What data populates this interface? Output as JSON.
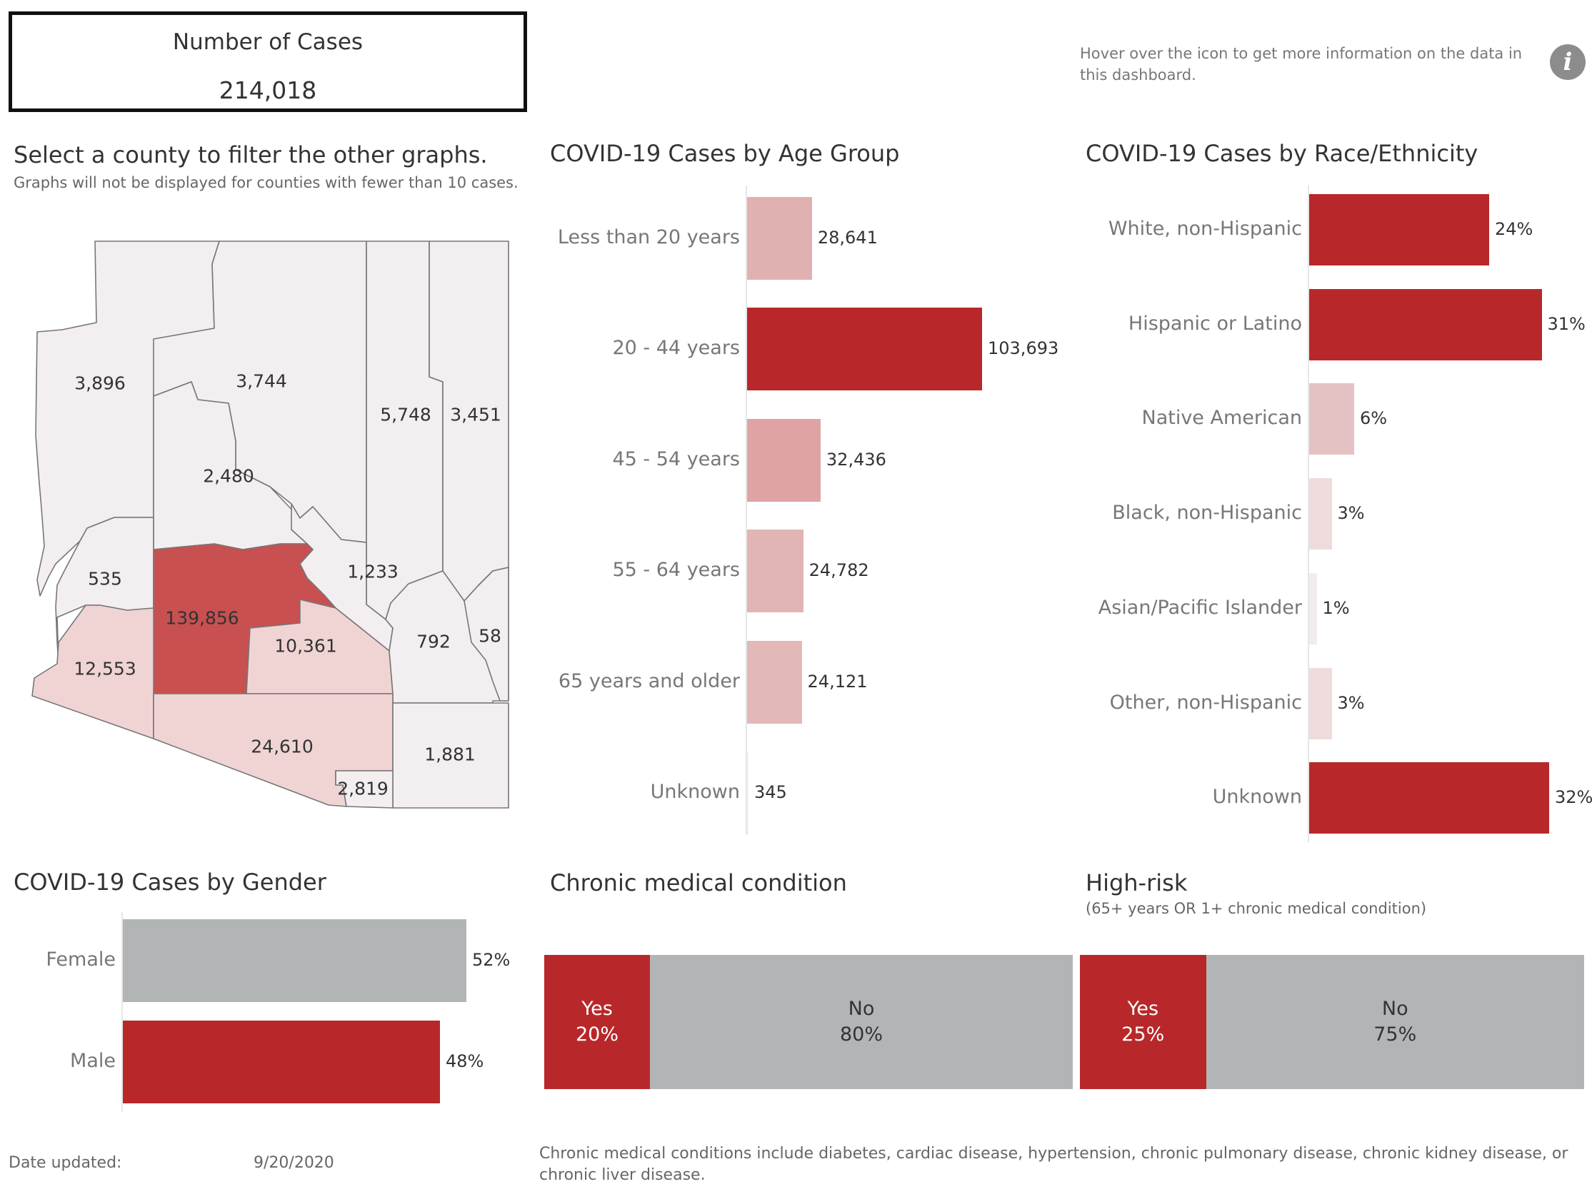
{
  "kpi": {
    "title": "Number of Cases",
    "value": "214,018"
  },
  "info": {
    "text": "Hover over the icon to get more information on the data in this dashboard.",
    "icon": "info-icon"
  },
  "map_panel": {
    "title": "Select a county to filter the other graphs.",
    "subtitle": "Graphs will not be displayed for counties with fewer than 10 cases.",
    "counties": [
      {
        "id": "mohave",
        "value": "3,896"
      },
      {
        "id": "coconino",
        "value": "3,744"
      },
      {
        "id": "navajo",
        "value": "5,748"
      },
      {
        "id": "apache",
        "value": "3,451"
      },
      {
        "id": "yavapai",
        "value": "2,480"
      },
      {
        "id": "la-paz",
        "value": "535"
      },
      {
        "id": "gila",
        "value": "1,233"
      },
      {
        "id": "maricopa",
        "value": "139,856"
      },
      {
        "id": "pinal",
        "value": "10,361"
      },
      {
        "id": "yuma",
        "value": "12,553"
      },
      {
        "id": "graham",
        "value": "792"
      },
      {
        "id": "greenlee",
        "value": "58"
      },
      {
        "id": "pima",
        "value": "24,610"
      },
      {
        "id": "cochise",
        "value": "1,881"
      },
      {
        "id": "santa-cruz",
        "value": "2,819"
      }
    ],
    "colors": {
      "high": "#c85050",
      "mid": "#f0d4d4",
      "low": "#f3eeef",
      "border": "#777777"
    }
  },
  "age_chart": {
    "title": "COVID-19 Cases by Age Group",
    "categories": [
      "Less than 20 years",
      "20 -  44 years",
      "45 - 54 years",
      "55 - 64 years",
      "65 years and older",
      "Unknown"
    ],
    "values": [
      28641,
      103693,
      32436,
      24782,
      24121,
      345
    ],
    "value_labels": [
      "28,641",
      "103,693",
      "32,436",
      "24,782",
      "24,121",
      "345"
    ],
    "colors": [
      "#e1b1b1",
      "#b8282a",
      "#dfa3a5",
      "#e1b5b5",
      "#e2b8b9",
      "#f5f0f0"
    ]
  },
  "race_chart": {
    "title": "COVID-19 Cases by Race/Ethnicity",
    "categories": [
      "White, non-Hispanic",
      "Hispanic or Latino",
      "Native American",
      "Black, non-Hispanic",
      "Asian/Pacific Islander",
      "Other, non-Hispanic",
      "Unknown"
    ],
    "values": [
      24,
      31,
      6,
      3,
      1,
      3,
      32
    ],
    "value_labels": [
      "24%",
      "31%",
      "6%",
      "3%",
      "1%",
      "3%",
      "32%"
    ],
    "colors": [
      "#b8282a",
      "#b8282a",
      "#e4c2c3",
      "#eedcdd",
      "#f1eced",
      "#eedcdd",
      "#b8282a"
    ]
  },
  "gender_chart": {
    "title": "COVID-19 Cases by Gender",
    "categories": [
      "Female",
      "Male"
    ],
    "values": [
      52,
      48
    ],
    "value_labels": [
      "52%",
      "48%"
    ],
    "colors": [
      "#b2b5b6",
      "#b8282a"
    ]
  },
  "chronic_chart": {
    "title": "Chronic medical condition",
    "segments": [
      {
        "label": "Yes",
        "value": 20,
        "value_label": "20%",
        "color": "#b8282a",
        "text_color": "#ffffff"
      },
      {
        "label": "No",
        "value": 80,
        "value_label": "80%",
        "color": "#b2b5b6",
        "text_color": "#333333"
      }
    ]
  },
  "highrisk_chart": {
    "title": "High-risk",
    "subtitle": "(65+ years OR 1+ chronic medical condition)",
    "segments": [
      {
        "label": "Yes",
        "value": 25,
        "value_label": "25%",
        "color": "#b8282a",
        "text_color": "#ffffff"
      },
      {
        "label": "No",
        "value": 75,
        "value_label": "75%",
        "color": "#b2b5b6",
        "text_color": "#333333"
      }
    ]
  },
  "footer": {
    "date_label": "Date updated:",
    "date_value": "9/20/2020",
    "note": "Chronic medical conditions include diabetes, cardiac disease, hypertension, chronic pulmonary disease, chronic kidney disease, or chronic liver disease."
  }
}
